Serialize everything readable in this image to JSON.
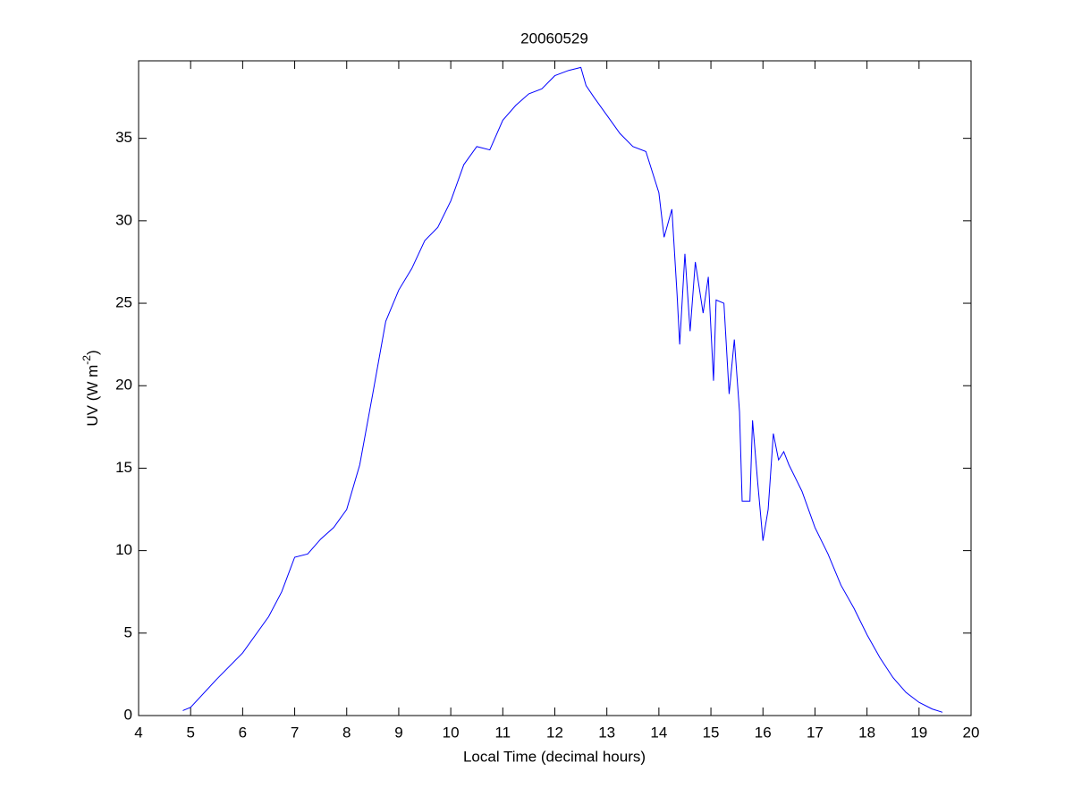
{
  "chart_data": {
    "type": "line",
    "title": "20060529",
    "xlabel": "Local Time (decimal hours)",
    "ylabel": {
      "text": "UV (W m",
      "sup": "-2",
      "end": ")"
    },
    "xlim": [
      4,
      20
    ],
    "xticks": [
      4,
      5,
      6,
      7,
      8,
      9,
      10,
      11,
      12,
      13,
      14,
      15,
      16,
      17,
      18,
      19,
      20
    ],
    "ylim": [
      0,
      39.7
    ],
    "yticks": [
      0,
      5,
      10,
      15,
      20,
      25,
      30,
      35
    ],
    "grid": false,
    "series": [
      {
        "color": "#0000ff",
        "x": [
          4.85,
          5,
          5.5,
          6,
          6.5,
          6.75,
          7,
          7.25,
          7.5,
          7.75,
          8,
          8.25,
          8.5,
          8.75,
          9,
          9.25,
          9.5,
          9.75,
          10,
          10.25,
          10.5,
          10.75,
          11,
          11.25,
          11.5,
          11.75,
          12,
          12.25,
          12.5,
          12.6,
          12.75,
          13,
          13.25,
          13.5,
          13.75,
          14,
          14.1,
          14.25,
          14.35,
          14.4,
          14.5,
          14.6,
          14.7,
          14.85,
          14.95,
          15.05,
          15.1,
          15.25,
          15.35,
          15.45,
          15.55,
          15.6,
          15.75,
          15.8,
          15.9,
          16,
          16.1,
          16.2,
          16.3,
          16.4,
          16.5,
          16.75,
          17,
          17.25,
          17.5,
          17.75,
          18,
          18.25,
          18.5,
          18.75,
          19,
          19.25,
          19.45
        ],
        "values": [
          0.3,
          0.5,
          2.2,
          3.8,
          6.0,
          7.5,
          9.6,
          9.8,
          10.7,
          11.4,
          12.5,
          15.2,
          19.5,
          23.9,
          25.8,
          27.1,
          28.8,
          29.6,
          31.2,
          33.4,
          34.5,
          34.3,
          36.1,
          37.0,
          37.7,
          38.0,
          38.8,
          39.1,
          39.3,
          38.2,
          37.5,
          36.4,
          35.3,
          34.5,
          34.2,
          31.7,
          29.0,
          30.7,
          25.5,
          22.5,
          28.0,
          23.3,
          27.5,
          24.4,
          26.6,
          20.3,
          25.2,
          25.0,
          19.5,
          22.8,
          18.4,
          13.0,
          13.0,
          17.9,
          14.1,
          10.6,
          12.5,
          17.1,
          15.5,
          16.0,
          15.2,
          13.6,
          11.4,
          9.8,
          7.9,
          6.5,
          4.9,
          3.5,
          2.3,
          1.4,
          0.8,
          0.4,
          0.2
        ]
      }
    ]
  }
}
